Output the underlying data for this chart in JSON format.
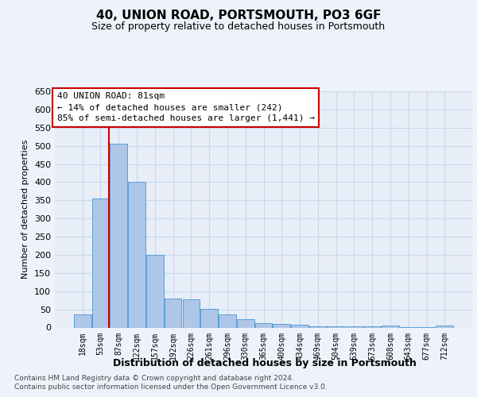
{
  "title": "40, UNION ROAD, PORTSMOUTH, PO3 6GF",
  "subtitle": "Size of property relative to detached houses in Portsmouth",
  "xlabel": "Distribution of detached houses by size in Portsmouth",
  "ylabel": "Number of detached properties",
  "categories": [
    "18sqm",
    "53sqm",
    "87sqm",
    "122sqm",
    "157sqm",
    "192sqm",
    "226sqm",
    "261sqm",
    "296sqm",
    "330sqm",
    "365sqm",
    "400sqm",
    "434sqm",
    "469sqm",
    "504sqm",
    "539sqm",
    "573sqm",
    "608sqm",
    "643sqm",
    "677sqm",
    "712sqm"
  ],
  "values": [
    35,
    355,
    505,
    400,
    200,
    80,
    78,
    52,
    35,
    22,
    12,
    10,
    8,
    3,
    3,
    3,
    3,
    5,
    1,
    1,
    5
  ],
  "bar_color": "#aec6e8",
  "bar_edge_color": "#5a9fd4",
  "grid_color": "#c8d8e8",
  "background_color": "#eef2fa",
  "axes_background": "#e8eef8",
  "annotation_line1": "40 UNION ROAD: 81sqm",
  "annotation_line2": "← 14% of detached houses are smaller (242)",
  "annotation_line3": "85% of semi-detached houses are larger (1,441) →",
  "annotation_box_color": "#ffffff",
  "annotation_box_edge": "#cc0000",
  "vline_color": "#cc0000",
  "ylim_max": 650,
  "ytick_step": 50,
  "footnote1": "Contains HM Land Registry data © Crown copyright and database right 2024.",
  "footnote2": "Contains public sector information licensed under the Open Government Licence v3.0."
}
